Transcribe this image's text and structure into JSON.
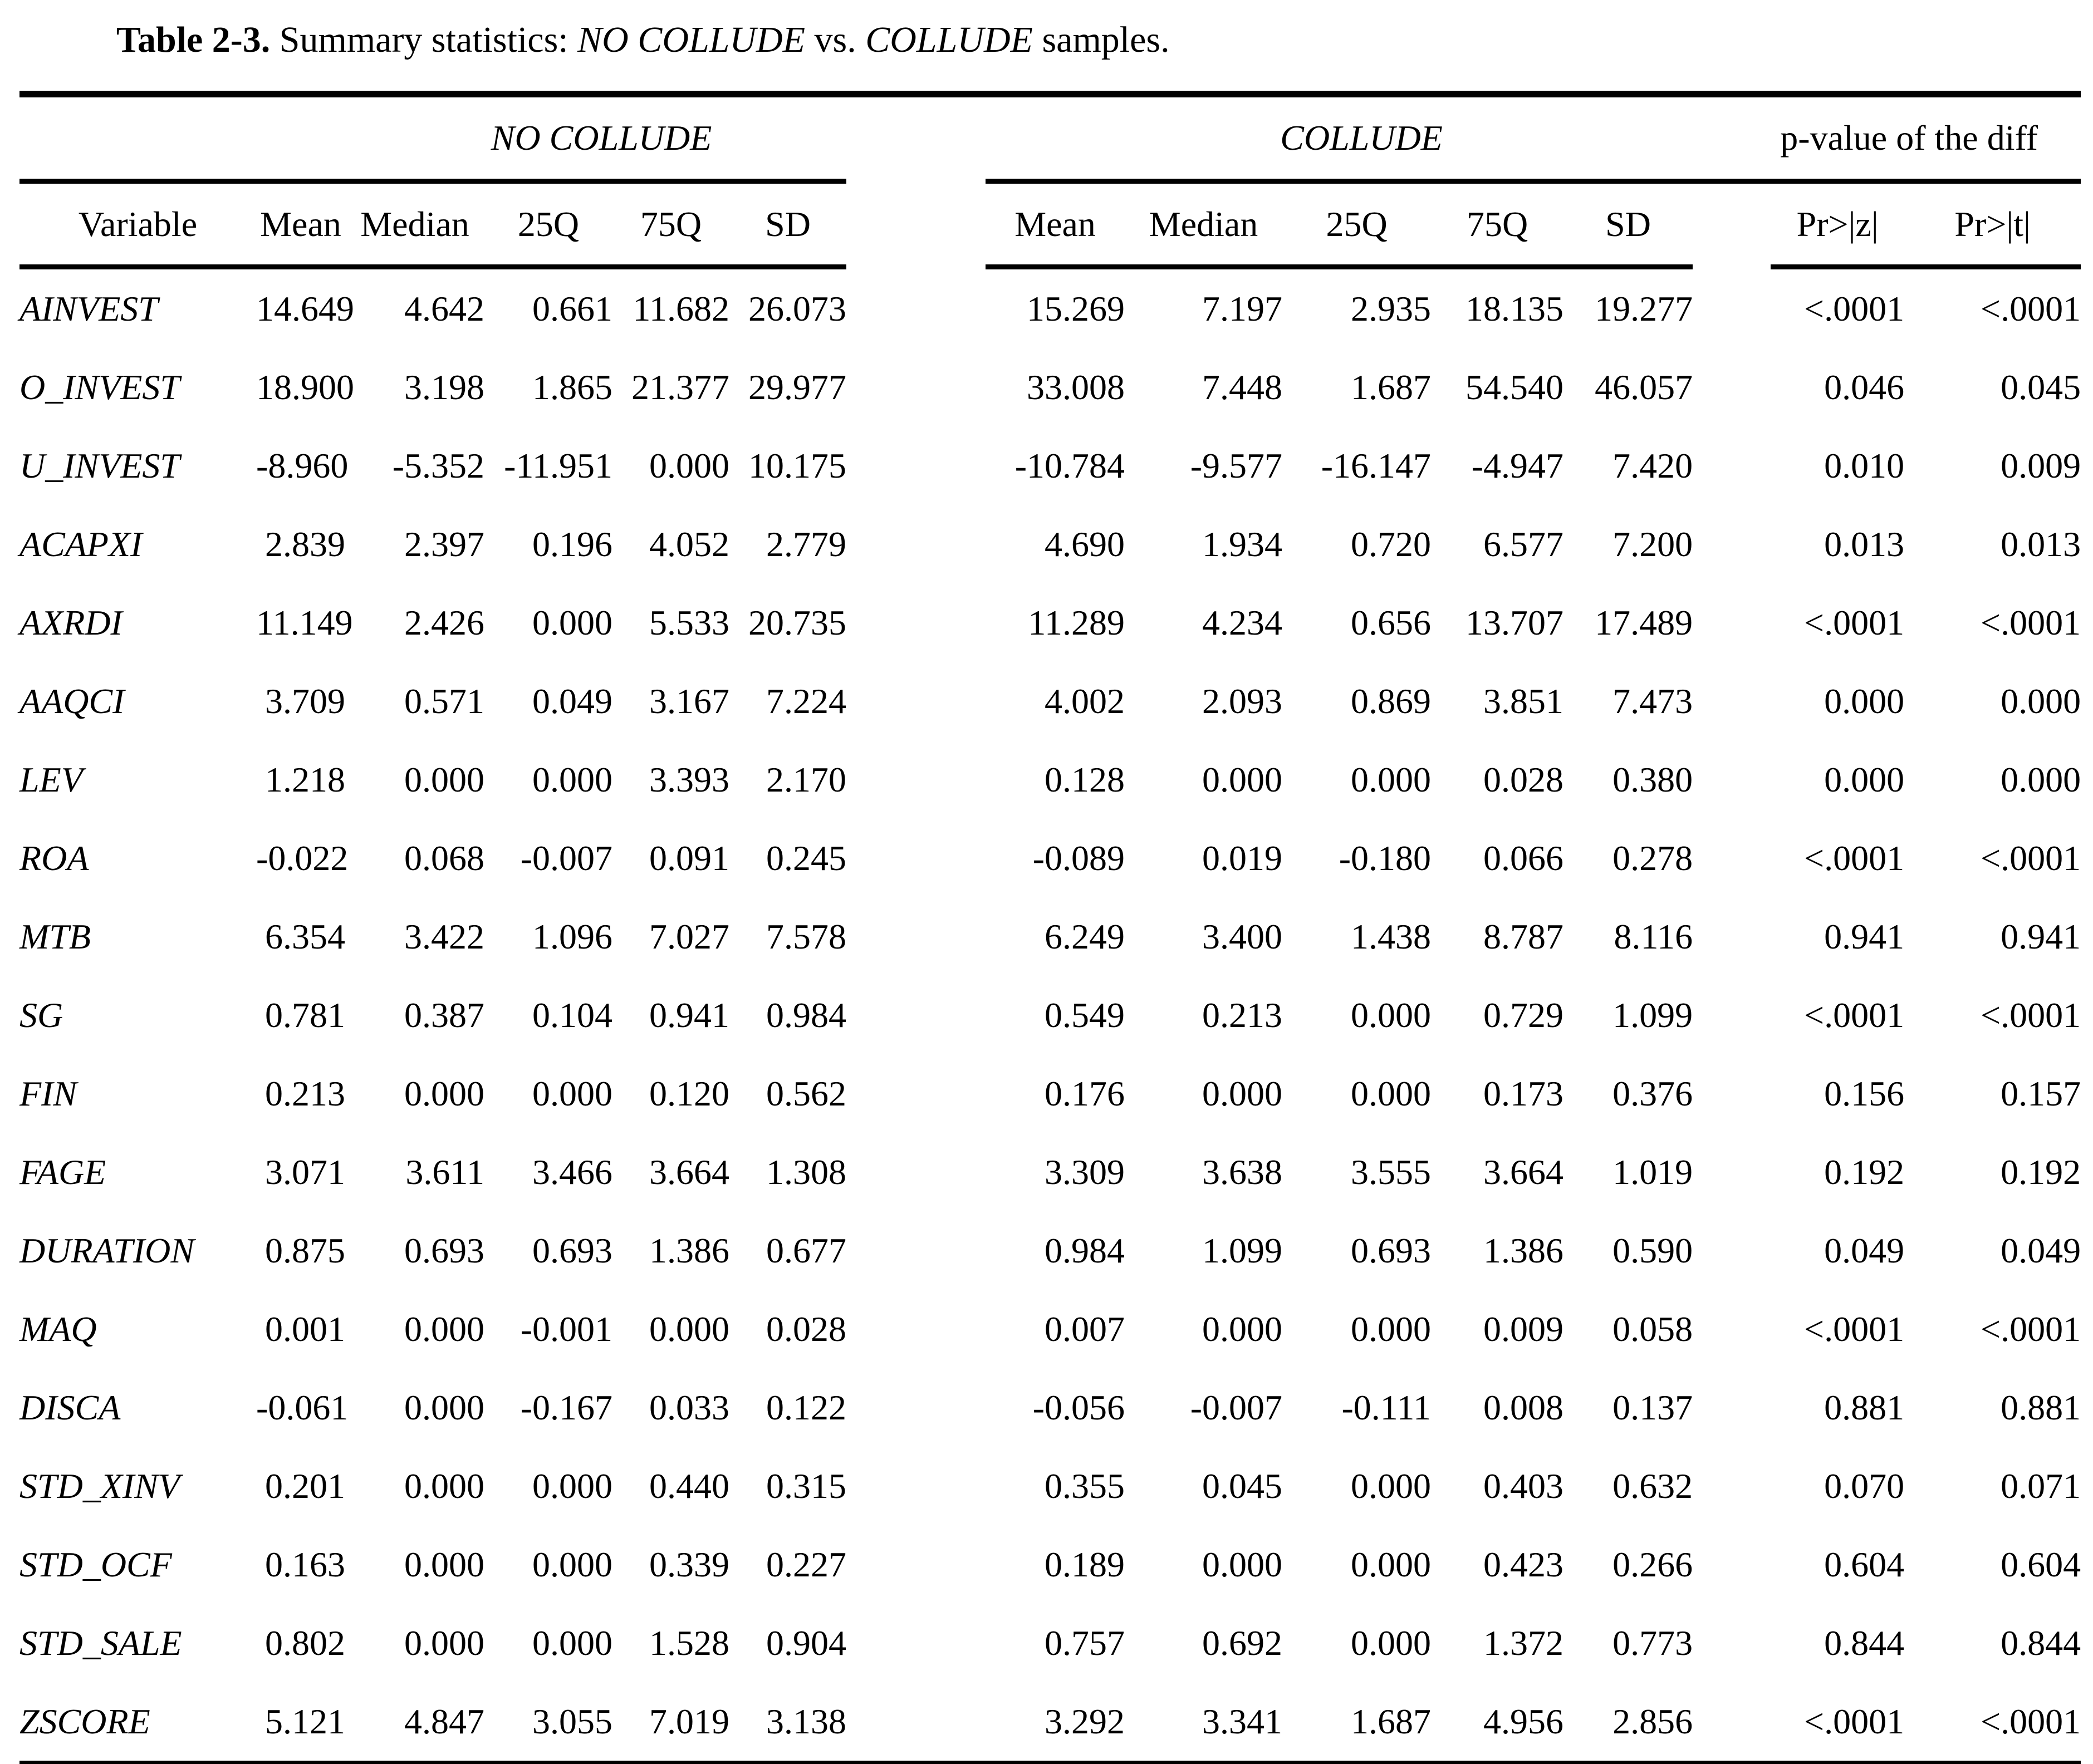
{
  "title": {
    "label": "Table 2-3.",
    "prefix": " Summary statistics: ",
    "sample1": "NO COLLUDE",
    "vs": " vs. ",
    "sample2": "COLLUDE",
    "suffix": " samples."
  },
  "groups": {
    "no_collude": "NO COLLUDE",
    "collude": "COLLUDE",
    "pvalue": "p-value of the diff"
  },
  "columns": {
    "variable": "Variable",
    "stats": [
      "Mean",
      "Median",
      "25Q",
      "75Q",
      "SD"
    ],
    "pvals": [
      "Pr>|z|",
      "Pr>|t|"
    ]
  },
  "rows": [
    {
      "variable": "AINVEST",
      "nc": [
        "14.649",
        "4.642",
        "0.661",
        "11.682",
        "26.073"
      ],
      "c": [
        "15.269",
        "7.197",
        "2.935",
        "18.135",
        "19.277"
      ],
      "p": [
        "<.0001",
        "<.0001"
      ]
    },
    {
      "variable": "O_INVEST",
      "nc": [
        "18.900",
        "3.198",
        "1.865",
        "21.377",
        "29.977"
      ],
      "c": [
        "33.008",
        "7.448",
        "1.687",
        "54.540",
        "46.057"
      ],
      "p": [
        "0.046",
        "0.045"
      ]
    },
    {
      "variable": "U_INVEST",
      "nc": [
        "-8.960",
        "-5.352",
        "-11.951",
        "0.000",
        "10.175"
      ],
      "c": [
        "-10.784",
        "-9.577",
        "-16.147",
        "-4.947",
        "7.420"
      ],
      "p": [
        "0.010",
        "0.009"
      ]
    },
    {
      "variable": "ACAPXI",
      "nc": [
        "2.839",
        "2.397",
        "0.196",
        "4.052",
        "2.779"
      ],
      "c": [
        "4.690",
        "1.934",
        "0.720",
        "6.577",
        "7.200"
      ],
      "p": [
        "0.013",
        "0.013"
      ]
    },
    {
      "variable": "AXRDI",
      "nc": [
        "11.149",
        "2.426",
        "0.000",
        "5.533",
        "20.735"
      ],
      "c": [
        "11.289",
        "4.234",
        "0.656",
        "13.707",
        "17.489"
      ],
      "p": [
        "<.0001",
        "<.0001"
      ]
    },
    {
      "variable": "AAQCI",
      "nc": [
        "3.709",
        "0.571",
        "0.049",
        "3.167",
        "7.224"
      ],
      "c": [
        "4.002",
        "2.093",
        "0.869",
        "3.851",
        "7.473"
      ],
      "p": [
        "0.000",
        "0.000"
      ]
    },
    {
      "variable": "LEV",
      "nc": [
        "1.218",
        "0.000",
        "0.000",
        "3.393",
        "2.170"
      ],
      "c": [
        "0.128",
        "0.000",
        "0.000",
        "0.028",
        "0.380"
      ],
      "p": [
        "0.000",
        "0.000"
      ]
    },
    {
      "variable": "ROA",
      "nc": [
        "-0.022",
        "0.068",
        "-0.007",
        "0.091",
        "0.245"
      ],
      "c": [
        "-0.089",
        "0.019",
        "-0.180",
        "0.066",
        "0.278"
      ],
      "p": [
        "<.0001",
        "<.0001"
      ]
    },
    {
      "variable": "MTB",
      "nc": [
        "6.354",
        "3.422",
        "1.096",
        "7.027",
        "7.578"
      ],
      "c": [
        "6.249",
        "3.400",
        "1.438",
        "8.787",
        "8.116"
      ],
      "p": [
        "0.941",
        "0.941"
      ]
    },
    {
      "variable": "SG",
      "nc": [
        "0.781",
        "0.387",
        "0.104",
        "0.941",
        "0.984"
      ],
      "c": [
        "0.549",
        "0.213",
        "0.000",
        "0.729",
        "1.099"
      ],
      "p": [
        "<.0001",
        "<.0001"
      ]
    },
    {
      "variable": "FIN",
      "nc": [
        "0.213",
        "0.000",
        "0.000",
        "0.120",
        "0.562"
      ],
      "c": [
        "0.176",
        "0.000",
        "0.000",
        "0.173",
        "0.376"
      ],
      "p": [
        "0.156",
        "0.157"
      ]
    },
    {
      "variable": "FAGE",
      "nc": [
        "3.071",
        "3.611",
        "3.466",
        "3.664",
        "1.308"
      ],
      "c": [
        "3.309",
        "3.638",
        "3.555",
        "3.664",
        "1.019"
      ],
      "p": [
        "0.192",
        "0.192"
      ]
    },
    {
      "variable": "DURATION",
      "nc": [
        "0.875",
        "0.693",
        "0.693",
        "1.386",
        "0.677"
      ],
      "c": [
        "0.984",
        "1.099",
        "0.693",
        "1.386",
        "0.590"
      ],
      "p": [
        "0.049",
        "0.049"
      ]
    },
    {
      "variable": "MAQ",
      "nc": [
        "0.001",
        "0.000",
        "-0.001",
        "0.000",
        "0.028"
      ],
      "c": [
        "0.007",
        "0.000",
        "0.000",
        "0.009",
        "0.058"
      ],
      "p": [
        "<.0001",
        "<.0001"
      ]
    },
    {
      "variable": "DISCA",
      "nc": [
        "-0.061",
        "0.000",
        "-0.167",
        "0.033",
        "0.122"
      ],
      "c": [
        "-0.056",
        "-0.007",
        "-0.111",
        "0.008",
        "0.137"
      ],
      "p": [
        "0.881",
        "0.881"
      ]
    },
    {
      "variable": "STD_XINV",
      "nc": [
        "0.201",
        "0.000",
        "0.000",
        "0.440",
        "0.315"
      ],
      "c": [
        "0.355",
        "0.045",
        "0.000",
        "0.403",
        "0.632"
      ],
      "p": [
        "0.070",
        "0.071"
      ]
    },
    {
      "variable": "STD_OCF",
      "nc": [
        "0.163",
        "0.000",
        "0.000",
        "0.339",
        "0.227"
      ],
      "c": [
        "0.189",
        "0.000",
        "0.000",
        "0.423",
        "0.266"
      ],
      "p": [
        "0.604",
        "0.604"
      ]
    },
    {
      "variable": "STD_SALE",
      "nc": [
        "0.802",
        "0.000",
        "0.000",
        "1.528",
        "0.904"
      ],
      "c": [
        "0.757",
        "0.692",
        "0.000",
        "1.372",
        "0.773"
      ],
      "p": [
        "0.844",
        "0.844"
      ]
    },
    {
      "variable": "ZSCORE",
      "nc": [
        "5.121",
        "4.847",
        "3.055",
        "7.019",
        "3.138"
      ],
      "c": [
        "3.292",
        "3.341",
        "1.687",
        "4.956",
        "2.856"
      ],
      "p": [
        "<.0001",
        "<.0001"
      ]
    }
  ]
}
